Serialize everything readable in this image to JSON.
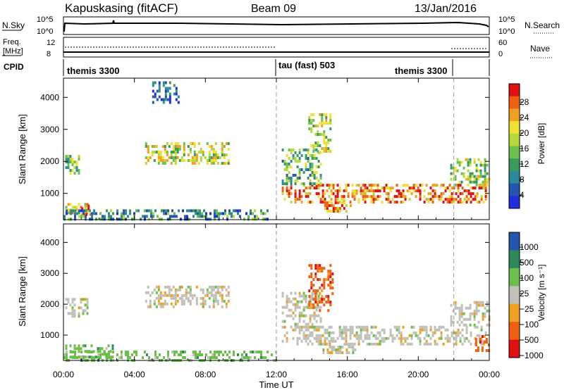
{
  "header": {
    "station": "Kapuskasing (fitACF)",
    "beam": "Beam 09",
    "date": "13/Jan/2016"
  },
  "strip": {
    "nsky_label": "N.Sky",
    "nsky_ticks": [
      "10^5",
      "10^0"
    ],
    "nsearch_label": "N.Search",
    "nsearch_ticks": [
      "10^5",
      "10^0"
    ],
    "freq_label": "Freq.",
    "freq_unit": "[MHz]",
    "freq_ticks": [
      "12",
      "8"
    ],
    "nave_label": "Nave",
    "nave_ticks": [
      "60",
      "0"
    ],
    "cpid_label": "CPID",
    "modes": [
      "themis 3300",
      "tau (fast) 503",
      "themis 3300"
    ]
  },
  "colors": {
    "power": [
      "#1f2fe0",
      "#2455b0",
      "#2a8a9a",
      "#3a9a5a",
      "#6ac04a",
      "#b8d838",
      "#f0e030",
      "#f0a020",
      "#f06010",
      "#e01010"
    ],
    "velocity": [
      "#e01010",
      "#f06010",
      "#f0a020",
      "#c0c0b8",
      "#6ac04a",
      "#2e8a5a",
      "#2455b0"
    ],
    "ground_scatter": "#c0c0b8"
  },
  "chart_data": [
    {
      "type": "heatmap",
      "title": "Power",
      "xlabel": "",
      "ylabel": "Slant Range [km]",
      "x_ticks": [
        "00:00",
        "04:00",
        "08:00",
        "12:00",
        "16:00",
        "20:00",
        "00:00"
      ],
      "xlim_hours": [
        0,
        24
      ],
      "y_ticks": [
        1000,
        2000,
        3000,
        4000
      ],
      "ylim": [
        180,
        4600
      ],
      "mode_boundaries_hours": [
        12,
        22
      ],
      "colorbar": {
        "label": "Power [dB]",
        "ticks": [
          "4",
          "8",
          "12",
          "16",
          "20",
          "24",
          "28"
        ],
        "range": [
          0,
          30
        ]
      },
      "regions": [
        {
          "t0": 0.1,
          "t1": 1.4,
          "r0": 300,
          "r1": 700,
          "level": 0.6
        },
        {
          "t0": 1.0,
          "t1": 1.5,
          "r0": 350,
          "r1": 650,
          "level": 0.95
        },
        {
          "t0": 0.1,
          "t1": 0.9,
          "r0": 1600,
          "r1": 2200,
          "level": 0.45
        },
        {
          "t0": 4.6,
          "t1": 9.3,
          "r0": 1900,
          "r1": 2600,
          "level": 0.55
        },
        {
          "t0": 5.0,
          "t1": 6.5,
          "r0": 3800,
          "r1": 4500,
          "level": 0.15
        },
        {
          "t0": 12.3,
          "t1": 23.8,
          "r0": 700,
          "r1": 1300,
          "level": 0.8
        },
        {
          "t0": 12.3,
          "t1": 14.5,
          "r0": 1300,
          "r1": 2400,
          "level": 0.4
        },
        {
          "t0": 13.8,
          "t1": 15.0,
          "r0": 2300,
          "r1": 3500,
          "level": 0.55
        },
        {
          "t0": 14.7,
          "t1": 16.2,
          "r0": 420,
          "r1": 750,
          "level": 0.75
        },
        {
          "t0": 21.8,
          "t1": 24.0,
          "r0": 1300,
          "r1": 2100,
          "level": 0.5
        },
        {
          "t0": 0.0,
          "t1": 11.5,
          "r0": 200,
          "r1": 500,
          "level": 0.3
        }
      ]
    },
    {
      "type": "heatmap",
      "title": "Velocity",
      "xlabel": "Time UT",
      "ylabel": "Slant Range [km]",
      "x_ticks": [
        "00:00",
        "04:00",
        "08:00",
        "12:00",
        "16:00",
        "20:00",
        "00:00"
      ],
      "xlim_hours": [
        0,
        24
      ],
      "y_ticks": [
        1000,
        2000,
        3000,
        4000
      ],
      "ylim": [
        180,
        4600
      ],
      "mode_boundaries_hours": [
        12,
        22
      ],
      "colorbar": {
        "label": "Velocity [m s⁻¹]",
        "ticks": [
          "1000",
          "500",
          "100",
          "25",
          "−25",
          "−100",
          "−500",
          "−1000"
        ]
      },
      "regions": [
        {
          "t0": 0.1,
          "t1": 2.8,
          "r0": 300,
          "r1": 700,
          "class": "green"
        },
        {
          "t0": 0.1,
          "t1": 1.4,
          "r0": 1600,
          "r1": 2200,
          "class": "gray"
        },
        {
          "t0": 4.6,
          "t1": 9.3,
          "r0": 1900,
          "r1": 2600,
          "class": "gray"
        },
        {
          "t0": 12.3,
          "t1": 23.8,
          "r0": 700,
          "r1": 1300,
          "class": "gray"
        },
        {
          "t0": 12.3,
          "t1": 14.5,
          "r0": 1300,
          "r1": 2400,
          "class": "gray"
        },
        {
          "t0": 13.8,
          "t1": 15.2,
          "r0": 1800,
          "r1": 3300,
          "class": "orange"
        },
        {
          "t0": 14.6,
          "t1": 16.4,
          "r0": 420,
          "r1": 750,
          "class": "gray"
        },
        {
          "t0": 21.8,
          "t1": 24.0,
          "r0": 1300,
          "r1": 2100,
          "class": "gray"
        },
        {
          "t0": 23.2,
          "t1": 24.0,
          "r0": 500,
          "r1": 1000,
          "class": "orange"
        },
        {
          "t0": 0.0,
          "t1": 12.0,
          "r0": 200,
          "r1": 500,
          "class": "green"
        }
      ]
    }
  ]
}
